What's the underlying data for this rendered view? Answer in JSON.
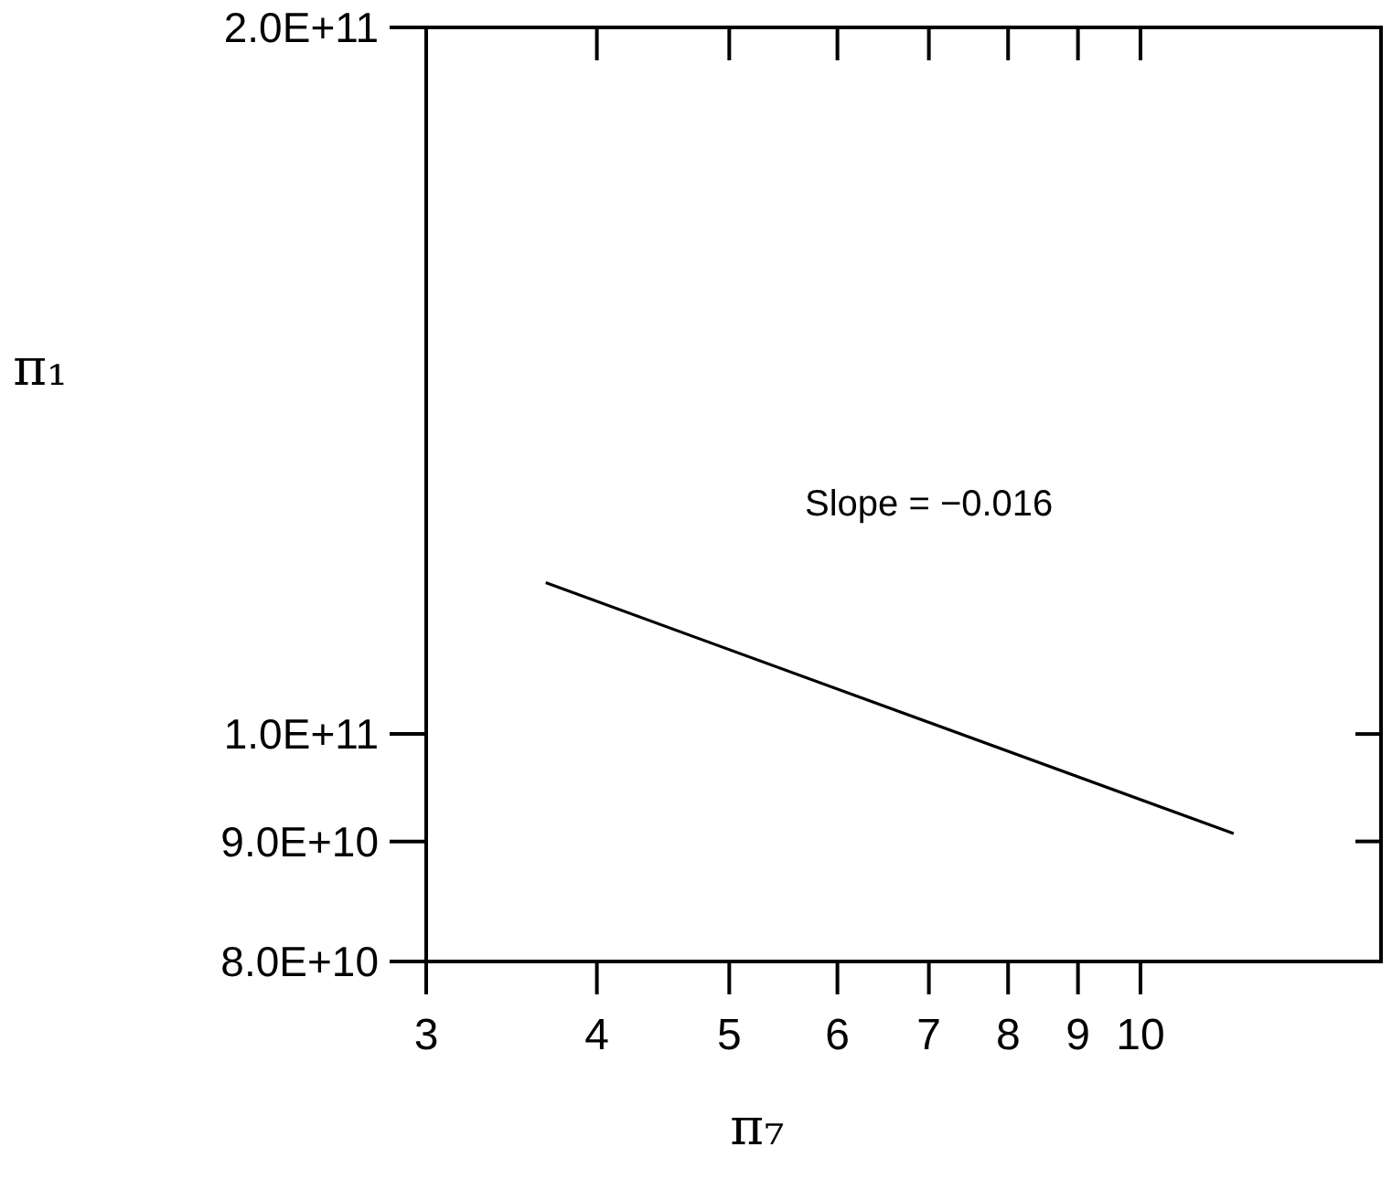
{
  "chart_data": {
    "type": "line",
    "xlabel": "π₇",
    "ylabel": "π₁",
    "log": "xy",
    "marker": "none",
    "line_style": "solid",
    "x": [
      3.67,
      11.7
    ],
    "series": [
      {
        "color": "#000000",
        "values": [
          116000000000,
          90700000000
        ]
      }
    ],
    "xlim": [
      3,
      15
    ],
    "xticks": [
      3,
      4,
      5,
      6,
      7,
      8,
      9,
      10
    ],
    "ylim": [
      80000000000,
      200000000000
    ],
    "yticks": [
      {
        "value": 80000000000,
        "label": "8.0E+10"
      },
      {
        "value": 90000000000,
        "label": "9.0E+10"
      },
      {
        "value": 100000000000,
        "label": "1.0E+11"
      },
      {
        "value": 200000000000,
        "label": "2.0E+11"
      }
    ],
    "annotations": [
      "Slope = −0.016"
    ]
  }
}
